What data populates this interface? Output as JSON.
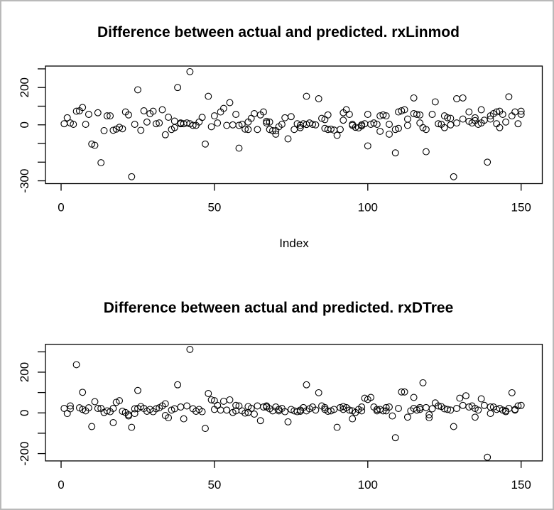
{
  "window": {
    "background_color": "#ffffff",
    "border_color": "#b9b9b9",
    "foreground_color": "#000000"
  },
  "chart_data": [
    {
      "type": "scatter",
      "title": "Difference between actual and predicted. rxLinmod",
      "xlabel": "Index",
      "ylabel": "",
      "marker": "open-circle",
      "point_color": "#000000",
      "grid": false,
      "xlim": [
        -5.1,
        156.9
      ],
      "ylim": [
        -315,
        315
      ],
      "x_ticks": [
        0,
        50,
        100,
        150
      ],
      "y_ticks": [
        {
          "v": 300,
          "label": ""
        },
        {
          "v": 200,
          "label": "200"
        },
        {
          "v": 100,
          "label": ""
        },
        {
          "v": 0,
          "label": "0"
        },
        {
          "v": -100,
          "label": ""
        },
        {
          "v": -200,
          "label": ""
        },
        {
          "v": -300,
          "label": "-300"
        }
      ],
      "points": [
        [
          1,
          6
        ],
        [
          2,
          38
        ],
        [
          3,
          10
        ],
        [
          4,
          3
        ],
        [
          5,
          73
        ],
        [
          6,
          75
        ],
        [
          7,
          93
        ],
        [
          8,
          3
        ],
        [
          9,
          56
        ],
        [
          10,
          -103
        ],
        [
          11,
          -110
        ],
        [
          12,
          65
        ],
        [
          13,
          -203
        ],
        [
          14,
          -31
        ],
        [
          15,
          48
        ],
        [
          16,
          48
        ],
        [
          17,
          -29
        ],
        [
          18,
          -23
        ],
        [
          19,
          -13
        ],
        [
          20,
          -21
        ],
        [
          21,
          69
        ],
        [
          22,
          53
        ],
        [
          23,
          -278
        ],
        [
          24,
          3
        ],
        [
          25,
          188
        ],
        [
          26,
          -29
        ],
        [
          27,
          75
        ],
        [
          28,
          15
        ],
        [
          29,
          60
        ],
        [
          30,
          73
        ],
        [
          31,
          6
        ],
        [
          32,
          10
        ],
        [
          33,
          81
        ],
        [
          34,
          -53
        ],
        [
          35,
          41
        ],
        [
          36,
          -25
        ],
        [
          37,
          -15
        ],
        [
          37,
          20
        ],
        [
          38,
          200
        ],
        [
          39,
          6
        ],
        [
          39,
          10
        ],
        [
          40,
          6
        ],
        [
          41,
          10
        ],
        [
          42,
          285
        ],
        [
          42,
          6
        ],
        [
          43,
          -3
        ],
        [
          44,
          -3
        ],
        [
          45,
          15
        ],
        [
          46,
          40
        ],
        [
          47,
          -103
        ],
        [
          48,
          153
        ],
        [
          49,
          -10
        ],
        [
          50,
          48
        ],
        [
          51,
          10
        ],
        [
          52,
          69
        ],
        [
          53,
          88
        ],
        [
          54,
          -3
        ],
        [
          55,
          119
        ],
        [
          56,
          0
        ],
        [
          57,
          56
        ],
        [
          58,
          -125
        ],
        [
          58,
          -3
        ],
        [
          59,
          3
        ],
        [
          60,
          -23
        ],
        [
          61,
          -25
        ],
        [
          61,
          15
        ],
        [
          62,
          35
        ],
        [
          63,
          60
        ],
        [
          64,
          -25
        ],
        [
          65,
          53
        ],
        [
          66,
          69
        ],
        [
          67,
          19
        ],
        [
          67,
          10
        ],
        [
          68,
          15
        ],
        [
          68,
          -25
        ],
        [
          69,
          -31
        ],
        [
          70,
          -50
        ],
        [
          70,
          -31
        ],
        [
          71,
          -10
        ],
        [
          72,
          3
        ],
        [
          73,
          38
        ],
        [
          74,
          -75
        ],
        [
          75,
          44
        ],
        [
          76,
          -25
        ],
        [
          77,
          6
        ],
        [
          78,
          -3
        ],
        [
          78,
          -15
        ],
        [
          79,
          6
        ],
        [
          80,
          153
        ],
        [
          80,
          2
        ],
        [
          81,
          10
        ],
        [
          82,
          3
        ],
        [
          83,
          0
        ],
        [
          84,
          140
        ],
        [
          85,
          35
        ],
        [
          86,
          28
        ],
        [
          86,
          -19
        ],
        [
          87,
          53
        ],
        [
          87,
          -25
        ],
        [
          88,
          -23
        ],
        [
          89,
          -28
        ],
        [
          90,
          -56
        ],
        [
          91,
          -25
        ],
        [
          92,
          25
        ],
        [
          92,
          65
        ],
        [
          93,
          81
        ],
        [
          94,
          56
        ],
        [
          95,
          3
        ],
        [
          95,
          -3
        ],
        [
          96,
          -13
        ],
        [
          97,
          -16
        ],
        [
          98,
          -6
        ],
        [
          98,
          0
        ],
        [
          99,
          6
        ],
        [
          100,
          -113
        ],
        [
          100,
          56
        ],
        [
          101,
          3
        ],
        [
          102,
          10
        ],
        [
          103,
          3
        ],
        [
          104,
          -35
        ],
        [
          104,
          48
        ],
        [
          105,
          53
        ],
        [
          106,
          48
        ],
        [
          107,
          3
        ],
        [
          107,
          -50
        ],
        [
          109,
          -150
        ],
        [
          109,
          -25
        ],
        [
          110,
          -19
        ],
        [
          110,
          69
        ],
        [
          111,
          75
        ],
        [
          112,
          81
        ],
        [
          113,
          31
        ],
        [
          113,
          -3
        ],
        [
          115,
          144
        ],
        [
          115,
          60
        ],
        [
          116,
          56
        ],
        [
          117,
          53
        ],
        [
          117,
          10
        ],
        [
          118,
          -15
        ],
        [
          119,
          -25
        ],
        [
          119,
          -144
        ],
        [
          121,
          56
        ],
        [
          122,
          123
        ],
        [
          123,
          6
        ],
        [
          124,
          3
        ],
        [
          125,
          48
        ],
        [
          125,
          -15
        ],
        [
          126,
          38
        ],
        [
          127,
          35
        ],
        [
          127,
          0
        ],
        [
          128,
          -278
        ],
        [
          129,
          140
        ],
        [
          129,
          10
        ],
        [
          131,
          144
        ],
        [
          131,
          31
        ],
        [
          133,
          69
        ],
        [
          133,
          19
        ],
        [
          134,
          10
        ],
        [
          135,
          38
        ],
        [
          135,
          23
        ],
        [
          136,
          3
        ],
        [
          137,
          81
        ],
        [
          137,
          10
        ],
        [
          138,
          25
        ],
        [
          139,
          -200
        ],
        [
          140,
          31
        ],
        [
          140,
          48
        ],
        [
          141,
          60
        ],
        [
          142,
          69
        ],
        [
          142,
          6
        ],
        [
          143,
          73
        ],
        [
          143,
          -15
        ],
        [
          144,
          56
        ],
        [
          145,
          15
        ],
        [
          146,
          150
        ],
        [
          147,
          48
        ],
        [
          148,
          69
        ],
        [
          149,
          6
        ],
        [
          150,
          73
        ],
        [
          150,
          56
        ]
      ]
    },
    {
      "type": "scatter",
      "title": "Difference between actual and predicted. rxDTree",
      "xlabel": "",
      "ylabel": "",
      "marker": "open-circle",
      "point_color": "#000000",
      "grid": false,
      "xlim": [
        -5.1,
        156.9
      ],
      "ylim": [
        -236,
        337
      ],
      "x_ticks": [
        0,
        50,
        100,
        150
      ],
      "y_ticks": [
        {
          "v": 300,
          "label": ""
        },
        {
          "v": 200,
          "label": "200"
        },
        {
          "v": 100,
          "label": ""
        },
        {
          "v": 0,
          "label": "0"
        },
        {
          "v": -100,
          "label": ""
        },
        {
          "v": -200,
          "label": "-200"
        }
      ],
      "points": [
        [
          1,
          22
        ],
        [
          2,
          -3
        ],
        [
          3,
          34
        ],
        [
          3,
          20
        ],
        [
          5,
          237
        ],
        [
          6,
          25
        ],
        [
          7,
          101
        ],
        [
          7,
          17
        ],
        [
          8,
          10
        ],
        [
          9,
          25
        ],
        [
          10,
          -67
        ],
        [
          11,
          55
        ],
        [
          12,
          22
        ],
        [
          13,
          22
        ],
        [
          14,
          2
        ],
        [
          15,
          10
        ],
        [
          16,
          6
        ],
        [
          17,
          22
        ],
        [
          17,
          -48
        ],
        [
          18,
          52
        ],
        [
          19,
          60
        ],
        [
          20,
          8
        ],
        [
          21,
          2
        ],
        [
          22,
          -15
        ],
        [
          22,
          -9
        ],
        [
          23,
          -71
        ],
        [
          24,
          20
        ],
        [
          24,
          -3
        ],
        [
          25,
          110
        ],
        [
          25,
          22
        ],
        [
          26,
          31
        ],
        [
          27,
          22
        ],
        [
          28,
          8
        ],
        [
          29,
          17
        ],
        [
          30,
          6
        ],
        [
          31,
          20
        ],
        [
          32,
          25
        ],
        [
          33,
          34
        ],
        [
          34,
          45
        ],
        [
          34,
          -13
        ],
        [
          35,
          -24
        ],
        [
          36,
          14
        ],
        [
          37,
          20
        ],
        [
          38,
          138
        ],
        [
          39,
          29
        ],
        [
          40,
          -29
        ],
        [
          41,
          34
        ],
        [
          42,
          312
        ],
        [
          43,
          20
        ],
        [
          44,
          8
        ],
        [
          45,
          17
        ],
        [
          46,
          6
        ],
        [
          47,
          -76
        ],
        [
          48,
          95
        ],
        [
          49,
          64
        ],
        [
          50,
          60
        ],
        [
          50,
          17
        ],
        [
          51,
          37
        ],
        [
          52,
          14
        ],
        [
          53,
          57
        ],
        [
          54,
          14
        ],
        [
          55,
          64
        ],
        [
          56,
          2
        ],
        [
          57,
          10
        ],
        [
          57,
          37
        ],
        [
          58,
          34
        ],
        [
          59,
          10
        ],
        [
          60,
          -1
        ],
        [
          61,
          2
        ],
        [
          61,
          31
        ],
        [
          62,
          22
        ],
        [
          63,
          -6
        ],
        [
          64,
          34
        ],
        [
          65,
          -38
        ],
        [
          66,
          29
        ],
        [
          67,
          29
        ],
        [
          67,
          34
        ],
        [
          68,
          20
        ],
        [
          69,
          10
        ],
        [
          70,
          29
        ],
        [
          71,
          17
        ],
        [
          71,
          10
        ],
        [
          72,
          22
        ],
        [
          73,
          6
        ],
        [
          74,
          -44
        ],
        [
          75,
          17
        ],
        [
          76,
          10
        ],
        [
          77,
          6
        ],
        [
          78,
          8
        ],
        [
          78,
          14
        ],
        [
          79,
          26
        ],
        [
          80,
          138
        ],
        [
          80,
          10
        ],
        [
          81,
          20
        ],
        [
          82,
          29
        ],
        [
          83,
          14
        ],
        [
          84,
          99
        ],
        [
          85,
          34
        ],
        [
          86,
          26
        ],
        [
          86,
          17
        ],
        [
          87,
          8
        ],
        [
          88,
          10
        ],
        [
          89,
          17
        ],
        [
          90,
          -71
        ],
        [
          91,
          26
        ],
        [
          92,
          17
        ],
        [
          92,
          31
        ],
        [
          93,
          26
        ],
        [
          94,
          14
        ],
        [
          95,
          -29
        ],
        [
          95,
          10
        ],
        [
          96,
          2
        ],
        [
          97,
          17
        ],
        [
          98,
          29
        ],
        [
          98,
          10
        ],
        [
          99,
          72
        ],
        [
          100,
          66
        ],
        [
          101,
          76
        ],
        [
          102,
          29
        ],
        [
          103,
          17
        ],
        [
          103,
          10
        ],
        [
          104,
          17
        ],
        [
          105,
          10
        ],
        [
          106,
          26
        ],
        [
          106,
          10
        ],
        [
          107,
          29
        ],
        [
          108,
          -15
        ],
        [
          109,
          -122
        ],
        [
          110,
          22
        ],
        [
          111,
          103
        ],
        [
          112,
          103
        ],
        [
          113,
          -21
        ],
        [
          114,
          10
        ],
        [
          115,
          76
        ],
        [
          115,
          22
        ],
        [
          116,
          14
        ],
        [
          117,
          17
        ],
        [
          117,
          26
        ],
        [
          118,
          148
        ],
        [
          119,
          26
        ],
        [
          120,
          -24
        ],
        [
          120,
          -9
        ],
        [
          121,
          20
        ],
        [
          122,
          49
        ],
        [
          123,
          34
        ],
        [
          124,
          31
        ],
        [
          125,
          20
        ],
        [
          126,
          17
        ],
        [
          127,
          14
        ],
        [
          128,
          -67
        ],
        [
          129,
          22
        ],
        [
          130,
          72
        ],
        [
          131,
          37
        ],
        [
          132,
          84
        ],
        [
          133,
          29
        ],
        [
          134,
          34
        ],
        [
          135,
          22
        ],
        [
          135,
          -21
        ],
        [
          136,
          14
        ],
        [
          137,
          69
        ],
        [
          138,
          37
        ],
        [
          139,
          -218
        ],
        [
          140,
          -3
        ],
        [
          140,
          29
        ],
        [
          141,
          29
        ],
        [
          142,
          17
        ],
        [
          143,
          22
        ],
        [
          144,
          14
        ],
        [
          145,
          6
        ],
        [
          145,
          10
        ],
        [
          146,
          22
        ],
        [
          147,
          99
        ],
        [
          148,
          14
        ],
        [
          148,
          17
        ],
        [
          149,
          34
        ],
        [
          150,
          37
        ]
      ]
    }
  ]
}
